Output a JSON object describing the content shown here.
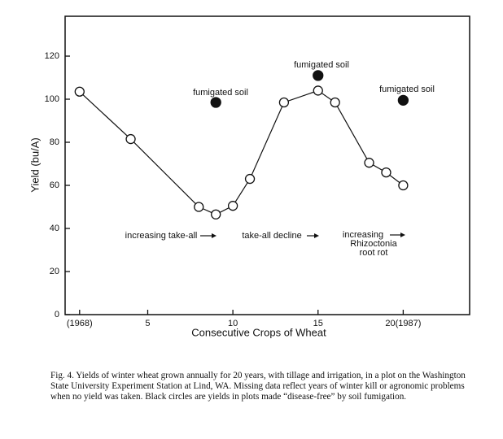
{
  "chart_data": {
    "type": "line",
    "ylabel": "Yield (bu/A)",
    "xlabel": "Consecutive Crops of Wheat",
    "xlim": [
      0.15,
      23.9
    ],
    "ylim": [
      0,
      138.5
    ],
    "xticks": [
      {
        "value": 1,
        "label": "(1968)"
      },
      5,
      10,
      15,
      {
        "value": 20,
        "label": "20(1987)"
      }
    ],
    "yticks": [
      0,
      20,
      40,
      60,
      80,
      100,
      120
    ],
    "series": [
      {
        "color": "#111111",
        "marker": "open",
        "connected": true,
        "x": [
          1,
          4,
          8,
          9,
          10,
          11,
          13,
          15,
          16,
          18,
          19,
          20
        ],
        "values": [
          103.5,
          81.5,
          50,
          46.5,
          50.5,
          63,
          98.5,
          104,
          98.5,
          70.5,
          66,
          60
        ]
      },
      {
        "color": "#111111",
        "marker": "filled",
        "connected": false,
        "x": [
          9,
          15,
          20
        ],
        "values": [
          98.5,
          111,
          99.5
        ]
      }
    ],
    "annotations": [
      {
        "lines": [
          "fumigated soil"
        ]
      },
      {
        "lines": [
          "fumigated soil"
        ]
      },
      {
        "lines": [
          "fumigated soil"
        ]
      },
      {
        "lines": [
          "increasing take-all"
        ]
      },
      {
        "lines": [
          "take-all decline"
        ]
      },
      {
        "lines": [
          "increasing",
          "Rhizoctonia",
          "root rot"
        ]
      }
    ],
    "caption": "Fig. 4. Yields of winter wheat grown annually for 20 years, with tillage and irrigation, in a plot on the Washington State University Experiment Station at Lind, WA. Missing data reflect years of winter kill or agronomic problems when no yield was taken. Black circles are yields in plots made “disease-free” by soil fumigation."
  }
}
